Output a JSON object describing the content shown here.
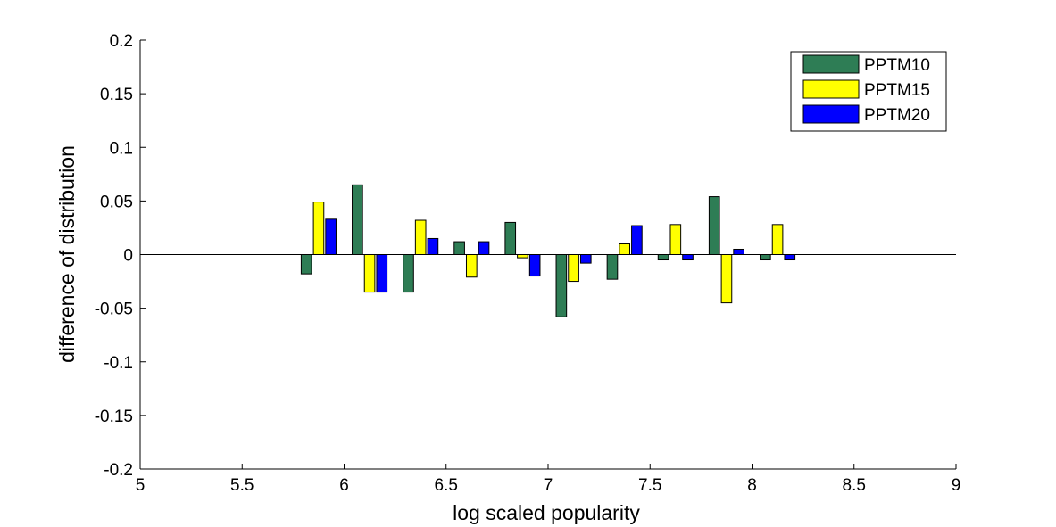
{
  "chart_data": {
    "type": "bar",
    "title": "",
    "xlabel": "log scaled popularity",
    "ylabel": "difference of distribution",
    "xlim": [
      5,
      9
    ],
    "ylim": [
      -0.2,
      0.2
    ],
    "xticks": [
      "5",
      "5.5",
      "6",
      "6.5",
      "7",
      "7.5",
      "8",
      "8.5",
      "9"
    ],
    "yticks": [
      "-0.2",
      "-0.15",
      "-0.1",
      "-0.05",
      "0",
      "0.05",
      "0.1",
      "0.15",
      "0.2"
    ],
    "x": [
      5.875,
      6.125,
      6.375,
      6.625,
      6.875,
      7.125,
      7.375,
      7.625,
      7.875,
      8.125
    ],
    "series": [
      {
        "name": "PPTM10",
        "color": "#2e7d55",
        "values": [
          -0.018,
          0.065,
          -0.035,
          0.012,
          0.03,
          -0.058,
          -0.023,
          -0.005,
          0.054,
          -0.005
        ]
      },
      {
        "name": "PPTM15",
        "color": "#ffff00",
        "values": [
          0.049,
          -0.035,
          0.032,
          -0.021,
          -0.003,
          -0.025,
          0.01,
          0.028,
          -0.045,
          0.028
        ]
      },
      {
        "name": "PPTM20",
        "color": "#0000ff",
        "values": [
          0.033,
          -0.035,
          0.015,
          0.012,
          -0.02,
          -0.008,
          0.027,
          -0.005,
          0.005,
          -0.005
        ]
      }
    ],
    "legend_position": "top-right",
    "grid": false
  }
}
